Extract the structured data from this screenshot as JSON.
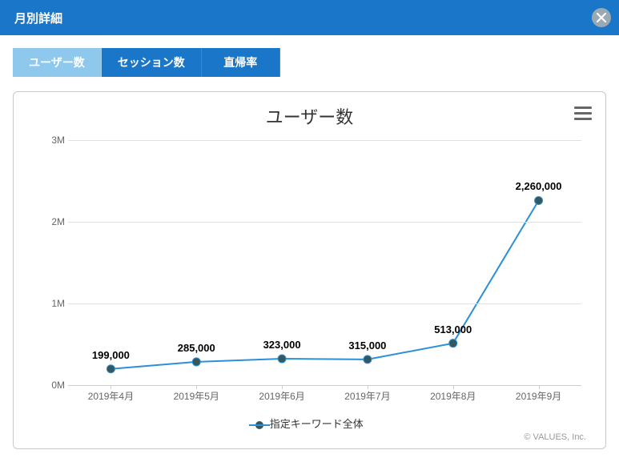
{
  "header": {
    "title": "月別詳細"
  },
  "tabs": [
    {
      "label": "ユーザー数",
      "active": true
    },
    {
      "label": "セッション数",
      "active": false
    },
    {
      "label": "直帰率",
      "active": false
    }
  ],
  "chart": {
    "type": "line",
    "title": "ユーザー数",
    "title_fontsize": 22,
    "title_color": "#333333",
    "categories": [
      "2019年4月",
      "2019年5月",
      "2019年6月",
      "2019年7月",
      "2019年8月",
      "2019年9月"
    ],
    "values": [
      199000,
      285000,
      323000,
      315000,
      513000,
      2260000
    ],
    "data_labels": [
      "199,000",
      "285,000",
      "323,000",
      "315,000",
      "513,000",
      "2,260,000"
    ],
    "yticks": [
      0,
      1000000,
      2000000,
      3000000
    ],
    "ytick_labels": [
      "0M",
      "1M",
      "2M",
      "3M"
    ],
    "ylim": [
      0,
      3000000
    ],
    "line_color": "#2b90d9",
    "line_width": 2,
    "marker_fill": "#33595f",
    "marker_stroke": "#2b90d9",
    "marker_radius": 5,
    "grid_color": "#e0e0e0",
    "axis_color": "#c4ced6",
    "background_color": "#ffffff",
    "axis_label_color": "#666666",
    "axis_label_fontsize": 12,
    "data_label_color": "#000000",
    "data_label_fontsize": 13,
    "legend": {
      "label": "指定キーワード全体",
      "color": "#2b90d9",
      "marker_fill": "#33595f"
    },
    "credits": "© VALUES, Inc."
  },
  "colors": {
    "header_bg": "#1976c8",
    "tab_bg": "#1976c8",
    "tab_active_bg": "#8ec8ed",
    "close_btn_bg": "#9aaab4"
  }
}
